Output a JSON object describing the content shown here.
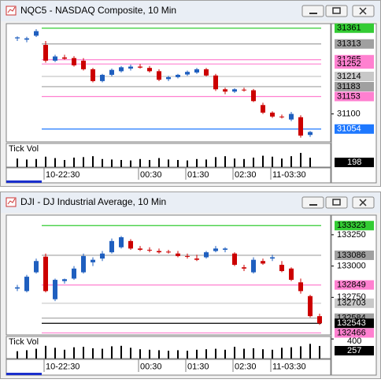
{
  "chart_data": [
    {
      "type": "candlestick",
      "title": "NQC5 - NASDAQ Composite, 10 Min",
      "categories": [
        null,
        null,
        null,
        "10-22:30",
        null,
        null,
        null,
        null,
        null,
        null,
        null,
        null,
        null,
        "00:30",
        null,
        null,
        null,
        null,
        "01:30",
        null,
        null,
        null,
        null,
        "02:30",
        null,
        null,
        null,
        "11-03:30",
        null,
        null,
        null,
        null
      ],
      "open": [
        31330,
        31326,
        31338,
        31310,
        31262,
        31272,
        31270,
        31262,
        31236,
        31200,
        31219,
        31230,
        31238,
        31244,
        31240,
        31230,
        31206,
        31212,
        31220,
        31226,
        31236,
        31217,
        31175,
        31168,
        31174,
        31172,
        31127,
        31104,
        31092,
        31083,
        31090,
        31036
      ],
      "high": [
        31336,
        31335,
        31358,
        31322,
        31280,
        31280,
        31276,
        31270,
        31240,
        31222,
        31238,
        31246,
        31250,
        31252,
        31246,
        31236,
        31216,
        31222,
        31232,
        31240,
        31240,
        31222,
        31180,
        31178,
        31180,
        31176,
        31134,
        31108,
        31098,
        31106,
        31096,
        31048
      ],
      "low": [
        31322,
        31318,
        31334,
        31256,
        31258,
        31265,
        31244,
        31232,
        31196,
        31196,
        31214,
        31226,
        31232,
        31238,
        31226,
        31200,
        31200,
        31208,
        31216,
        31222,
        31214,
        31170,
        31160,
        31164,
        31168,
        31136,
        31100,
        31088,
        31086,
        31078,
        31028,
        31030
      ],
      "close": [
        31333,
        31330,
        31352,
        31262,
        31275,
        31268,
        31248,
        31236,
        31200,
        31219,
        31234,
        31242,
        31244,
        31241,
        31230,
        31204,
        31212,
        31219,
        31228,
        31236,
        31217,
        31175,
        31168,
        31175,
        31172,
        31139,
        31104,
        31092,
        31090,
        31100,
        31034,
        31045
      ],
      "up_color": "#1f5fbf",
      "down_color": "#cc0000",
      "ylim": [
        31015,
        31370
      ],
      "yticks": [
        31100
      ],
      "levels": [
        {
          "value": 31361,
          "color": "#33cc33"
        },
        {
          "value": 31313,
          "color": "#a0a0a0"
        },
        {
          "value": 31265,
          "color": "#ff80d0"
        },
        {
          "value": 31252,
          "color": "#ff80d0"
        },
        {
          "value": 31214,
          "color": "#c8c8c8"
        },
        {
          "value": 31183,
          "color": "#a0a0a0"
        },
        {
          "value": 31153,
          "color": "#ff80d0"
        },
        {
          "value": 31054,
          "color": "#1e78ff"
        }
      ],
      "volume": {
        "name": "Tick Vol",
        "ylim": [
          0,
          500
        ],
        "values": [
          180,
          160,
          170,
          220,
          190,
          150,
          200,
          210,
          230,
          170,
          160,
          150,
          140,
          170,
          150,
          190,
          160,
          150,
          140,
          170,
          160,
          210,
          230,
          180,
          170,
          200,
          240,
          220,
          180,
          230,
          300,
          198
        ]
      }
    },
    {
      "type": "candlestick",
      "title": "DJI - DJ Industrial Average, 10 Min",
      "categories": [
        null,
        null,
        null,
        "10-22:30",
        null,
        null,
        null,
        null,
        null,
        null,
        null,
        null,
        null,
        "00:30",
        null,
        null,
        null,
        null,
        "01:30",
        null,
        null,
        null,
        null,
        "02:30",
        null,
        null,
        null,
        "11-03:30",
        null,
        null,
        null,
        null,
        null
      ],
      "open": [
        132820,
        132800,
        132950,
        133075,
        132735,
        132880,
        132900,
        132950,
        133030,
        133060,
        133110,
        133150,
        133200,
        133140,
        133130,
        133120,
        133115,
        133100,
        133080,
        133060,
        133070,
        133120,
        133130,
        133100,
        132990,
        132950,
        133040,
        133060,
        133010,
        132980,
        132870,
        132760,
        132600
      ],
      "high": [
        132850,
        132930,
        133060,
        133100,
        132900,
        132900,
        133000,
        133100,
        133070,
        133120,
        133220,
        133240,
        133215,
        133160,
        133150,
        133140,
        133130,
        133120,
        133100,
        133090,
        133120,
        133160,
        133150,
        133110,
        133010,
        133070,
        133060,
        133090,
        133040,
        132990,
        132900,
        132770,
        132620
      ],
      "low": [
        132800,
        132790,
        132940,
        132790,
        132720,
        132860,
        132890,
        132940,
        133000,
        133040,
        133100,
        133140,
        133130,
        133120,
        133110,
        133100,
        133100,
        133070,
        133060,
        133040,
        133060,
        133110,
        133110,
        133000,
        132960,
        132940,
        133010,
        133040,
        132950,
        132880,
        132780,
        132590,
        132530
      ],
      "close": [
        132830,
        132915,
        133040,
        132800,
        132890,
        132895,
        132980,
        133080,
        133050,
        133100,
        133200,
        133230,
        133140,
        133130,
        133125,
        133110,
        133110,
        133080,
        133075,
        133050,
        133110,
        133140,
        133140,
        133010,
        132980,
        133050,
        133020,
        133070,
        132960,
        132890,
        132800,
        132600,
        132543
      ],
      "up_color": "#1f5fbf",
      "down_color": "#cc0000",
      "ylim": [
        132450,
        133394
      ],
      "yticks": [
        133250,
        133000,
        132750
      ],
      "levels": [
        {
          "value": 133323,
          "color": "#33cc33"
        },
        {
          "value": 133086,
          "color": "#a0a0a0"
        },
        {
          "value": 132849,
          "color": "#ff80d0"
        },
        {
          "value": 132703,
          "color": "#c8c8c8"
        },
        {
          "value": 132584,
          "color": "#a0a0a0"
        },
        {
          "value": 132543,
          "color": "#000000"
        },
        {
          "value": 132466,
          "color": "#ff80d0"
        }
      ],
      "volume": {
        "name": "Tick Vol",
        "ylim": [
          0,
          450
        ],
        "yticks": [
          400
        ],
        "values": [
          150,
          170,
          200,
          260,
          220,
          180,
          230,
          240,
          210,
          200,
          250,
          260,
          220,
          190,
          180,
          170,
          160,
          170,
          160,
          180,
          190,
          200,
          180,
          240,
          200,
          210,
          190,
          180,
          220,
          230,
          250,
          300,
          257
        ]
      }
    }
  ]
}
